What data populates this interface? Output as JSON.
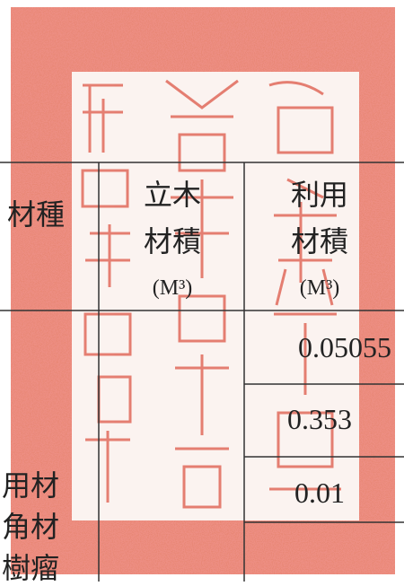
{
  "table": {
    "header": {
      "species": "材種",
      "standing": [
        "立木",
        "材積",
        "(M³)"
      ],
      "usable": [
        "利用",
        "材積",
        "(M³)"
      ]
    },
    "values": [
      "0.05055",
      "0.353",
      "0.01"
    ],
    "species_rows": [
      "用材",
      "角材",
      "樹瘤"
    ]
  }
}
